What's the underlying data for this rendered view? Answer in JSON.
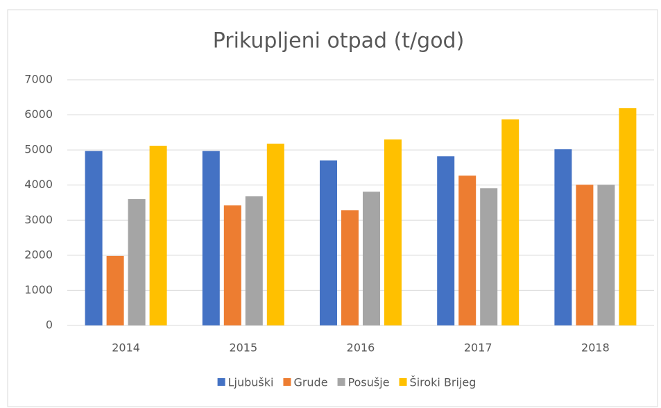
{
  "chart_data": {
    "type": "bar",
    "title": "Prikupljeni otpad (t/god)",
    "categories": [
      "2014",
      "2015",
      "2016",
      "2017",
      "2018"
    ],
    "series": [
      {
        "name": "Ljubuški",
        "color": "#4472c4",
        "values": [
          4970,
          4970,
          4700,
          4820,
          5020
        ]
      },
      {
        "name": "Grude",
        "color": "#ed7d31",
        "values": [
          1980,
          3420,
          3280,
          4270,
          4010
        ]
      },
      {
        "name": "Posušje",
        "color": "#a5a5a5",
        "values": [
          3600,
          3680,
          3810,
          3910,
          4010
        ]
      },
      {
        "name": "Široki Brijeg",
        "color": "#ffc000",
        "values": [
          5120,
          5180,
          5300,
          5870,
          6190
        ]
      }
    ],
    "ylim": [
      0,
      7000
    ],
    "yticks": [
      0,
      1000,
      2000,
      3000,
      4000,
      5000,
      6000,
      7000
    ],
    "grid": true,
    "legend": "bottom"
  }
}
